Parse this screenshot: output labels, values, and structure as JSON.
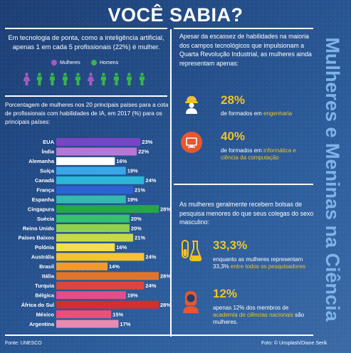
{
  "title": "VOCÊ SABIA?",
  "side_title": "Mulheres e Meninas na Ciência",
  "intro": "Em tecnologia de ponta, como a inteligência artificial, apenas 1 em cada 5 profissionais (22%) é mulher.",
  "legend": {
    "women": "Mulheres",
    "men": "Homens",
    "women_color": "#a45bbf",
    "men_color": "#38b449"
  },
  "chart_title": "Porcentagem de mulheres nos 20 principais países para a cota de profissionais com habilidades de IA, em 2017 (%) para os principais países:",
  "chart_data": {
    "type": "bar",
    "orientation": "horizontal",
    "categories": [
      "EUA",
      "Índia",
      "Alemanha",
      "Suíça",
      "Canadá",
      "França",
      "Espanha",
      "Cingapura",
      "Suécia",
      "Reino Unido",
      "Países Baixos",
      "Polônia",
      "Austrália",
      "Brasil",
      "Itália",
      "Turquia",
      "Bélgica",
      "África do Sul",
      "México",
      "Argentina"
    ],
    "values": [
      23,
      22,
      16,
      19,
      24,
      21,
      19,
      28,
      20,
      20,
      21,
      16,
      24,
      14,
      28,
      24,
      19,
      28,
      15,
      17
    ],
    "value_labels": [
      "23%",
      "22%",
      "16%",
      "19%",
      "24%",
      "21%",
      "19%",
      "28%",
      "20%",
      "20%",
      "21%",
      "16%",
      "24%",
      "14%",
      "28%",
      "24%",
      "19%",
      "28%",
      "15%",
      "17%"
    ],
    "colors": [
      "#7a44c4",
      "#b777d6",
      "#ffffff",
      "#3aa6e8",
      "#29b6d9",
      "#2b63d4",
      "#33b9b0",
      "#26a645",
      "#36c06f",
      "#8fd14f",
      "#c6d94a",
      "#f0e04b",
      "#f6c32f",
      "#f19a2b",
      "#e0742b",
      "#d9483b",
      "#e34d8a",
      "#d92c2c",
      "#ea4e7c",
      "#e98bb0"
    ],
    "xlim": [
      0,
      28
    ]
  },
  "right1": {
    "text": "Apesar da escassez de habilidades na maioria dos campos tecnológicos que impulsionam a Quarta Revolução Industrial, as mulheres ainda representam apenas:",
    "stat1_value": "28%",
    "stat1_text": "de formados em ",
    "stat1_hl": "engenharia",
    "stat2_value": "40%",
    "stat2_text": "de formados em ",
    "stat2_hl": "informática e ciência da computação"
  },
  "right2": {
    "text": "As mulheres geralmente recebem bolsas de pesquisa menores do que seus colegas do sexo masculino:",
    "stat3_value": "33,3%",
    "stat3_text": "enquanto as mulheres representam 33,3% ",
    "stat3_hl": "entre todos os pesquisadores",
    "stat4_value": "12%",
    "stat4_text": "apenas 12% dos membros de ",
    "stat4_hl": "academia de ciências nacionais",
    "stat4_tail": " são mulheres."
  },
  "source": "Fonte: UNESCO",
  "credit": "Foto: © Unsplash/Diane Serik",
  "icon_color": "#f3c224",
  "icon2_color": "#e8572f"
}
